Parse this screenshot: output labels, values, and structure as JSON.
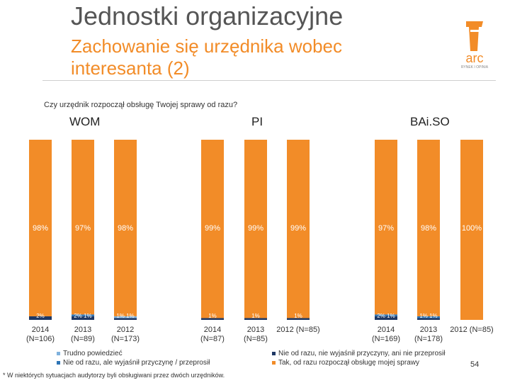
{
  "header": {
    "title": "Jednostki organizacyjne",
    "subtitle": "Zachowanie się urzędnika wobec interesanta (2)",
    "logo_text": "arc",
    "logo_tagline": "RYNEK I OPINIA"
  },
  "colors": {
    "orange": "#f28c28",
    "navy": "#1f3864",
    "blue": "#2e75b6",
    "lightblue": "#7fb2dd",
    "title_gray": "#555555"
  },
  "chart_data": {
    "type": "bar",
    "title": "Czy urzędnik rozpoczął obsługę Twojej sprawy od razu?",
    "stacked": true,
    "groups": [
      "WOM",
      "PI",
      "BAi.SO"
    ],
    "categories": [
      [
        "2014",
        "(N=106)"
      ],
      [
        "2013",
        "(N=89)"
      ],
      [
        "2012",
        "(N=173)"
      ],
      [
        "2014",
        "(N=87)"
      ],
      [
        "2013",
        "(N=85)"
      ],
      [
        "2012 (N=85)"
      ],
      [
        "2014",
        "(N=169)"
      ],
      [
        "2013",
        "(N=178)"
      ],
      [
        "2012 (N=85)"
      ]
    ],
    "category_group": [
      0,
      0,
      0,
      1,
      1,
      1,
      2,
      2,
      2
    ],
    "series": [
      {
        "name": "Trudno powiedzieć",
        "color": "#7fb2dd",
        "values": [
          0,
          0,
          1,
          0,
          0,
          0,
          0,
          0,
          0
        ]
      },
      {
        "name": "Nie od razu, ale wyjaśnił przyczynę / przeprosił",
        "color": "#2e75b6",
        "values": [
          0,
          1,
          0,
          0,
          0,
          0,
          1,
          1,
          0
        ]
      },
      {
        "name": "Nie od razu, nie wyjaśnił przyczyny, ani nie przeprosił",
        "color": "#1f3864",
        "values": [
          2,
          2,
          1,
          1,
          1,
          1,
          2,
          1,
          0
        ]
      },
      {
        "name": "Tak, od razu rozpoczął obsługę mojej sprawy",
        "color": "#f28c28",
        "values": [
          98,
          97,
          98,
          99,
          99,
          99,
          97,
          98,
          100
        ]
      }
    ],
    "data_labels": {
      "Tak": [
        "98%",
        "97%",
        "98%",
        "99%",
        "99%",
        "99%",
        "97%",
        "98%",
        "100%"
      ],
      "Nie, nie wyjaśnił": [
        "2%",
        "2%",
        "1%",
        "1%",
        "1%",
        "1%",
        "2%",
        "1%",
        ""
      ],
      "Nie, ale wyjaśnił": [
        "",
        "1%",
        "",
        "",
        "",
        "",
        "1%",
        "1%",
        ""
      ],
      "Trudno powiedzieć": [
        "",
        "",
        "1%",
        "",
        "",
        "",
        "",
        "",
        ""
      ]
    },
    "ylim": [
      0,
      100
    ]
  },
  "legend_left": [
    "Trudno powiedzieć",
    "Nie od razu, ale wyjaśnił przyczynę / przeprosił"
  ],
  "legend_right": [
    "Nie od razu, nie wyjaśnił przyczyny, ani nie przeprosił",
    "Tak, od razu rozpoczął obsługę mojej sprawy"
  ],
  "footnote": "* W niektórych sytuacjach audytorzy byli obsługiwani przez dwóch urzędników.",
  "page_number": "54"
}
